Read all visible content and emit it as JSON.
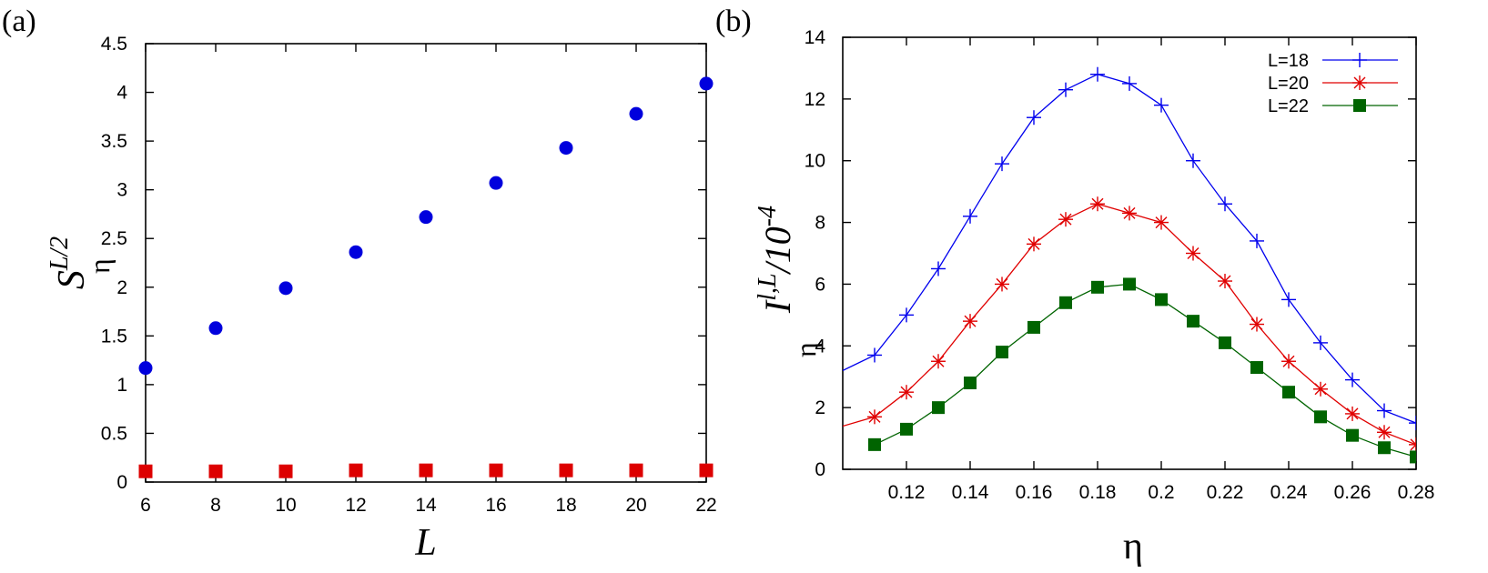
{
  "chart_data": [
    {
      "panel_label": "(a)",
      "type": "scatter",
      "xlabel": "L",
      "ylabel": {
        "base": "S",
        "superscript": "L/2",
        "subscript": "η"
      },
      "xlim": [
        6,
        22
      ],
      "ylim": [
        0,
        4.5
      ],
      "xticks": [
        "6",
        "8",
        "10",
        "12",
        "14",
        "16",
        "18",
        "20",
        "22"
      ],
      "yticks": [
        "0",
        "0.5",
        "1",
        "1.5",
        "2",
        "2.5",
        "3",
        "3.5",
        "4",
        "4.5"
      ],
      "grid": false,
      "series": [
        {
          "marker": "circle",
          "color": "#0000dd",
          "x": [
            6,
            8,
            10,
            12,
            14,
            16,
            18,
            20,
            22
          ],
          "y": [
            1.17,
            1.58,
            1.99,
            2.36,
            2.72,
            3.07,
            3.43,
            3.78,
            4.09
          ]
        },
        {
          "marker": "square",
          "color": "#dd0000",
          "x": [
            6,
            8,
            10,
            12,
            14,
            16,
            18,
            20,
            22
          ],
          "y": [
            0.11,
            0.11,
            0.11,
            0.12,
            0.12,
            0.12,
            0.12,
            0.12,
            0.12
          ]
        }
      ]
    },
    {
      "panel_label": "(b)",
      "type": "line",
      "xlabel": "η",
      "ylabel": {
        "base": "I",
        "superscript": "l,L",
        "subscript": "η",
        "suffix": "/10",
        "suffix_exp": "-4"
      },
      "xlim": [
        0.1,
        0.28
      ],
      "ylim": [
        0,
        14
      ],
      "xticks": [
        "0.12",
        "0.14",
        "0.16",
        "0.18",
        "0.2",
        "0.22",
        "0.24",
        "0.26",
        "0.28"
      ],
      "yticks": [
        "0",
        "2",
        "4",
        "6",
        "8",
        "10",
        "12",
        "14"
      ],
      "grid": false,
      "legend_position": "top-right",
      "series": [
        {
          "name": "L=18",
          "marker": "plus",
          "color": "#0000ee",
          "x": [
            0.1,
            0.11,
            0.12,
            0.13,
            0.14,
            0.15,
            0.16,
            0.17,
            0.18,
            0.19,
            0.2,
            0.21,
            0.22,
            0.23,
            0.24,
            0.25,
            0.26,
            0.27,
            0.28
          ],
          "y": [
            3.2,
            3.7,
            5.0,
            6.5,
            8.2,
            9.9,
            11.4,
            12.3,
            12.8,
            12.5,
            11.8,
            10.0,
            8.6,
            7.4,
            5.5,
            4.1,
            2.9,
            1.9,
            1.5
          ],
          "x_end": 0.285,
          "y_end": 1.1
        },
        {
          "name": "L=20",
          "marker": "star",
          "color": "#e00000",
          "x": [
            0.1,
            0.11,
            0.12,
            0.13,
            0.14,
            0.15,
            0.16,
            0.17,
            0.18,
            0.19,
            0.2,
            0.21,
            0.22,
            0.23,
            0.24,
            0.25,
            0.26,
            0.27,
            0.28
          ],
          "y": [
            1.4,
            1.7,
            2.5,
            3.5,
            4.8,
            6.0,
            7.3,
            8.1,
            8.6,
            8.3,
            8.0,
            7.0,
            6.1,
            4.7,
            3.5,
            2.6,
            1.8,
            1.2,
            0.8
          ],
          "x_end": 0.285,
          "y_end": 0.55
        },
        {
          "name": "L=22",
          "marker": "square",
          "color": "#006400",
          "x": [
            0.11,
            0.12,
            0.13,
            0.14,
            0.15,
            0.16,
            0.17,
            0.18,
            0.19,
            0.2,
            0.21,
            0.22,
            0.23,
            0.24,
            0.25,
            0.26,
            0.27,
            0.28
          ],
          "y": [
            0.8,
            1.3,
            2.0,
            2.8,
            3.8,
            4.6,
            5.4,
            5.9,
            6.0,
            5.5,
            4.8,
            4.1,
            3.3,
            2.5,
            1.7,
            1.1,
            0.7,
            0.4
          ]
        }
      ]
    }
  ]
}
